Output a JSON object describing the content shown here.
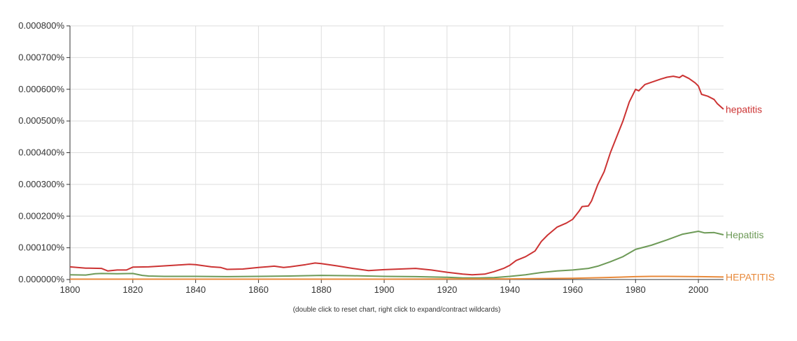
{
  "chart_data": {
    "type": "line",
    "title": "",
    "xlabel": "",
    "ylabel": "",
    "xlim": [
      1800,
      2008
    ],
    "ylim": [
      0,
      0.0008
    ],
    "grid": true,
    "x_ticks": [
      "1800",
      "1820",
      "1840",
      "1860",
      "1880",
      "1900",
      "1920",
      "1940",
      "1960",
      "1980",
      "2000"
    ],
    "y_ticks": [
      "0.000000%",
      "0.000100%",
      "0.000200%",
      "0.000300%",
      "0.000400%",
      "0.000500%",
      "0.000600%",
      "0.000700%",
      "0.000800%"
    ],
    "series": [
      {
        "name": "hepatitis",
        "color": "#cc3333",
        "points": [
          [
            1800,
            4e-05
          ],
          [
            1805,
            3.6e-05
          ],
          [
            1810,
            3.5e-05
          ],
          [
            1812,
            2.7e-05
          ],
          [
            1815,
            3e-05
          ],
          [
            1818,
            3e-05
          ],
          [
            1820,
            3.9e-05
          ],
          [
            1825,
            4e-05
          ],
          [
            1830,
            4.3e-05
          ],
          [
            1835,
            4.6e-05
          ],
          [
            1838,
            4.8e-05
          ],
          [
            1840,
            4.7e-05
          ],
          [
            1845,
            4e-05
          ],
          [
            1848,
            3.8e-05
          ],
          [
            1850,
            3.2e-05
          ],
          [
            1855,
            3.3e-05
          ],
          [
            1860,
            3.8e-05
          ],
          [
            1865,
            4.2e-05
          ],
          [
            1868,
            3.8e-05
          ],
          [
            1870,
            4e-05
          ],
          [
            1875,
            4.7e-05
          ],
          [
            1878,
            5.2e-05
          ],
          [
            1880,
            5e-05
          ],
          [
            1885,
            4.3e-05
          ],
          [
            1890,
            3.5e-05
          ],
          [
            1895,
            2.8e-05
          ],
          [
            1900,
            3.1e-05
          ],
          [
            1905,
            3.3e-05
          ],
          [
            1910,
            3.5e-05
          ],
          [
            1915,
            3e-05
          ],
          [
            1920,
            2.3e-05
          ],
          [
            1925,
            1.7e-05
          ],
          [
            1928,
            1.5e-05
          ],
          [
            1932,
            1.7e-05
          ],
          [
            1935,
            2.5e-05
          ],
          [
            1938,
            3.5e-05
          ],
          [
            1940,
            4.5e-05
          ],
          [
            1942,
            6e-05
          ],
          [
            1945,
            7.2e-05
          ],
          [
            1948,
            9e-05
          ],
          [
            1950,
            0.00012
          ],
          [
            1952,
            0.00014
          ],
          [
            1955,
            0.000165
          ],
          [
            1958,
            0.000178
          ],
          [
            1960,
            0.00019
          ],
          [
            1962,
            0.000215
          ],
          [
            1963,
            0.00023
          ],
          [
            1965,
            0.000232
          ],
          [
            1966,
            0.000248
          ],
          [
            1968,
            0.0003
          ],
          [
            1970,
            0.00034
          ],
          [
            1972,
            0.0004
          ],
          [
            1974,
            0.00045
          ],
          [
            1976,
            0.0005
          ],
          [
            1978,
            0.00056
          ],
          [
            1980,
            0.0006
          ],
          [
            1981,
            0.000595
          ],
          [
            1983,
            0.000615
          ],
          [
            1985,
            0.000622
          ],
          [
            1988,
            0.000632
          ],
          [
            1990,
            0.000638
          ],
          [
            1992,
            0.000641
          ],
          [
            1994,
            0.000637
          ],
          [
            1995,
            0.000644
          ],
          [
            1997,
            0.000634
          ],
          [
            1999,
            0.00062
          ],
          [
            2000,
            0.00061
          ],
          [
            2001,
            0.000584
          ],
          [
            2003,
            0.000578
          ],
          [
            2005,
            0.000568
          ],
          [
            2006,
            0.000555
          ],
          [
            2008,
            0.000537
          ]
        ]
      },
      {
        "name": "Hepatitis",
        "color": "#6d9a57",
        "points": [
          [
            1800,
            1.5e-05
          ],
          [
            1805,
            1.4e-05
          ],
          [
            1808,
            1.8e-05
          ],
          [
            1810,
            1.9e-05
          ],
          [
            1815,
            1.8e-05
          ],
          [
            1820,
            1.9e-05
          ],
          [
            1823,
            1.3e-05
          ],
          [
            1825,
            1.1e-05
          ],
          [
            1830,
            1e-05
          ],
          [
            1840,
            1e-05
          ],
          [
            1850,
            9e-06
          ],
          [
            1860,
            1e-05
          ],
          [
            1870,
            1.1e-05
          ],
          [
            1880,
            1.3e-05
          ],
          [
            1890,
            1.2e-05
          ],
          [
            1900,
            1e-05
          ],
          [
            1910,
            9e-06
          ],
          [
            1920,
            7e-06
          ],
          [
            1925,
            5e-06
          ],
          [
            1930,
            5e-06
          ],
          [
            1935,
            6e-06
          ],
          [
            1940,
            1e-05
          ],
          [
            1945,
            1.5e-05
          ],
          [
            1950,
            2.2e-05
          ],
          [
            1955,
            2.7e-05
          ],
          [
            1960,
            3e-05
          ],
          [
            1965,
            3.5e-05
          ],
          [
            1968,
            4.2e-05
          ],
          [
            1972,
            5.6e-05
          ],
          [
            1976,
            7.2e-05
          ],
          [
            1980,
            9.5e-05
          ],
          [
            1985,
            0.000108
          ],
          [
            1990,
            0.000125
          ],
          [
            1995,
            0.000143
          ],
          [
            2000,
            0.000152
          ],
          [
            2002,
            0.000147
          ],
          [
            2005,
            0.000148
          ],
          [
            2008,
            0.000141
          ]
        ]
      },
      {
        "name": "HEPATITIS",
        "color": "#e8893a",
        "points": [
          [
            1800,
            1e-06
          ],
          [
            1850,
            1e-06
          ],
          [
            1900,
            1e-06
          ],
          [
            1940,
            2e-06
          ],
          [
            1960,
            4e-06
          ],
          [
            1970,
            6e-06
          ],
          [
            1980,
            9e-06
          ],
          [
            1985,
            1e-05
          ],
          [
            1990,
            1e-05
          ],
          [
            2000,
            9e-06
          ],
          [
            2008,
            8e-06
          ]
        ]
      }
    ],
    "footnote": "(double click to reset chart, right click to expand/contract wildcards)"
  }
}
